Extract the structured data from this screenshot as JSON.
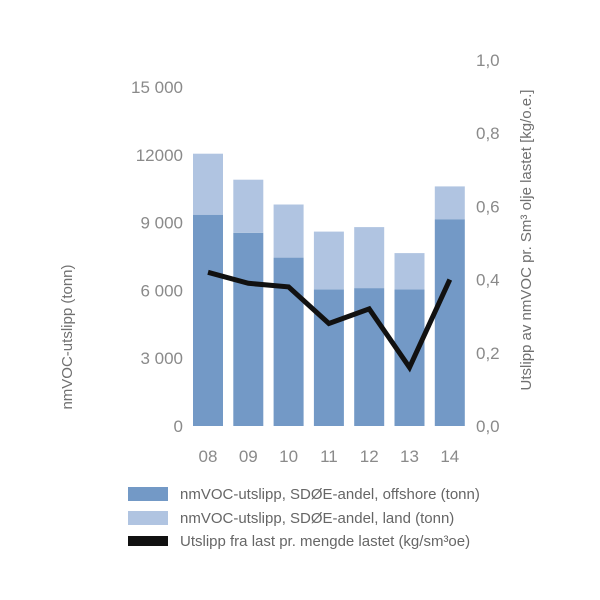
{
  "chart_data": {
    "type": "bar",
    "categories": [
      "08",
      "09",
      "10",
      "11",
      "12",
      "13",
      "14"
    ],
    "series": [
      {
        "name": "nmVOC-utslipp, SDØE-andel, offshore (tonn)",
        "kind": "bar",
        "stack": "total",
        "axis": "left",
        "color": "#7399c6",
        "values": [
          9350,
          8550,
          7450,
          6050,
          6100,
          6050,
          9150
        ]
      },
      {
        "name": "nmVOC-utslipp, SDØE-andel, land (tonn)",
        "kind": "bar",
        "stack": "total",
        "axis": "left",
        "color": "#b0c4e1",
        "values": [
          2700,
          2350,
          2350,
          2550,
          2700,
          1600,
          1450
        ]
      },
      {
        "name": "Utslipp fra last pr. mengde lastet (kg/sm³oe)",
        "kind": "line",
        "axis": "right",
        "color": "#111111",
        "values": [
          0.42,
          0.39,
          0.38,
          0.28,
          0.32,
          0.16,
          0.4
        ]
      }
    ],
    "left_axis": {
      "label": "nmVOC-utslipp (tonn)",
      "ylim": [
        0,
        15000
      ],
      "ticks": [
        0,
        3000,
        6000,
        9000,
        12000,
        15000
      ],
      "tick_labels": [
        "0",
        "3 000",
        "6 000",
        "9 000",
        "12000",
        "15 000"
      ]
    },
    "right_axis": {
      "label": "Utslipp av nmVOC pr. Sm³ olje lastet [kg/o.e.]",
      "ylim": [
        0,
        1.0
      ],
      "ticks": [
        0,
        0.2,
        0.4,
        0.6,
        0.8,
        1.0
      ],
      "tick_labels": [
        "0,0",
        "0,2",
        "0,4",
        "0,6",
        "0,8",
        "1,0"
      ]
    },
    "legend": {
      "position": "bottom",
      "items": [
        "nmVOC-utslipp, SDØE-andel, offshore (tonn)",
        "nmVOC-utslipp, SDØE-andel, land (tonn)",
        "Utslipp fra last pr. mengde lastet (kg/sm³oe)"
      ]
    },
    "grid": false
  }
}
